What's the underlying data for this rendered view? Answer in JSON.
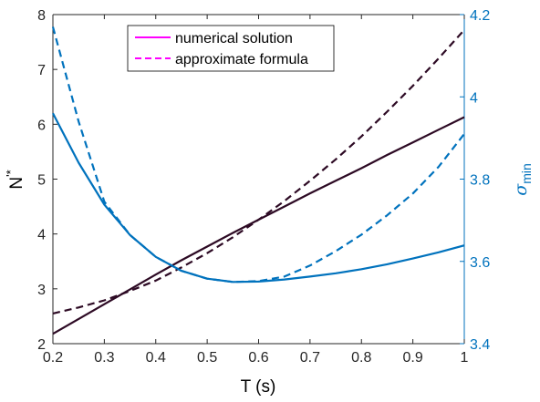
{
  "chart_data": {
    "type": "line",
    "x": [
      0.2,
      0.25,
      0.3,
      0.35,
      0.4,
      0.45,
      0.5,
      0.55,
      0.6,
      0.65,
      0.7,
      0.75,
      0.8,
      0.85,
      0.9,
      0.95,
      1.0
    ],
    "xlabel": "T (s)",
    "xlim": [
      0.2,
      1.0
    ],
    "xticks": [
      "0.2",
      "0.3",
      "0.4",
      "0.5",
      "0.6",
      "0.7",
      "0.8",
      "0.9",
      "1"
    ],
    "left_axis": {
      "label_main": "N",
      "label_super": "'*",
      "lim": [
        2,
        8
      ],
      "ticks": [
        "2",
        "3",
        "4",
        "5",
        "6",
        "7",
        "8"
      ],
      "color": "#000000"
    },
    "right_axis": {
      "label_main": "σ",
      "label_sub": "min",
      "lim": [
        3.4,
        4.2
      ],
      "ticks": [
        "3.4",
        "3.6",
        "3.8",
        "4",
        "4.2"
      ],
      "color": "#0072BD"
    },
    "series": [
      {
        "axis": "left",
        "style": "solid",
        "color": "#2d0a24",
        "values": [
          2.18,
          2.45,
          2.72,
          2.99,
          3.26,
          3.52,
          3.77,
          4.02,
          4.26,
          4.5,
          4.74,
          4.97,
          5.2,
          5.44,
          5.67,
          5.9,
          6.13
        ]
      },
      {
        "axis": "left",
        "style": "dashed",
        "color": "#2d0a24",
        "values": [
          2.55,
          2.66,
          2.79,
          2.96,
          3.15,
          3.39,
          3.65,
          3.94,
          4.26,
          4.6,
          4.97,
          5.36,
          5.78,
          6.23,
          6.7,
          7.2,
          7.72
        ]
      },
      {
        "axis": "right",
        "style": "solid",
        "color": "#0072BD",
        "values": [
          3.96,
          3.84,
          3.738,
          3.664,
          3.611,
          3.577,
          3.558,
          3.55,
          3.551,
          3.556,
          3.563,
          3.571,
          3.581,
          3.593,
          3.607,
          3.622,
          3.639
        ]
      },
      {
        "axis": "right",
        "style": "dashed",
        "color": "#0072BD",
        "values": [
          4.17,
          3.94,
          3.745,
          3.664,
          3.611,
          3.577,
          3.558,
          3.55,
          3.552,
          3.563,
          3.59,
          3.625,
          3.665,
          3.712,
          3.765,
          3.83,
          3.91
        ]
      }
    ],
    "legend": {
      "position": "top",
      "entries": [
        {
          "label": "numerical solution",
          "style": "solid",
          "color": "#FF00FF"
        },
        {
          "label": "approximate formula",
          "style": "dashed",
          "color": "#FF00FF"
        }
      ]
    }
  }
}
